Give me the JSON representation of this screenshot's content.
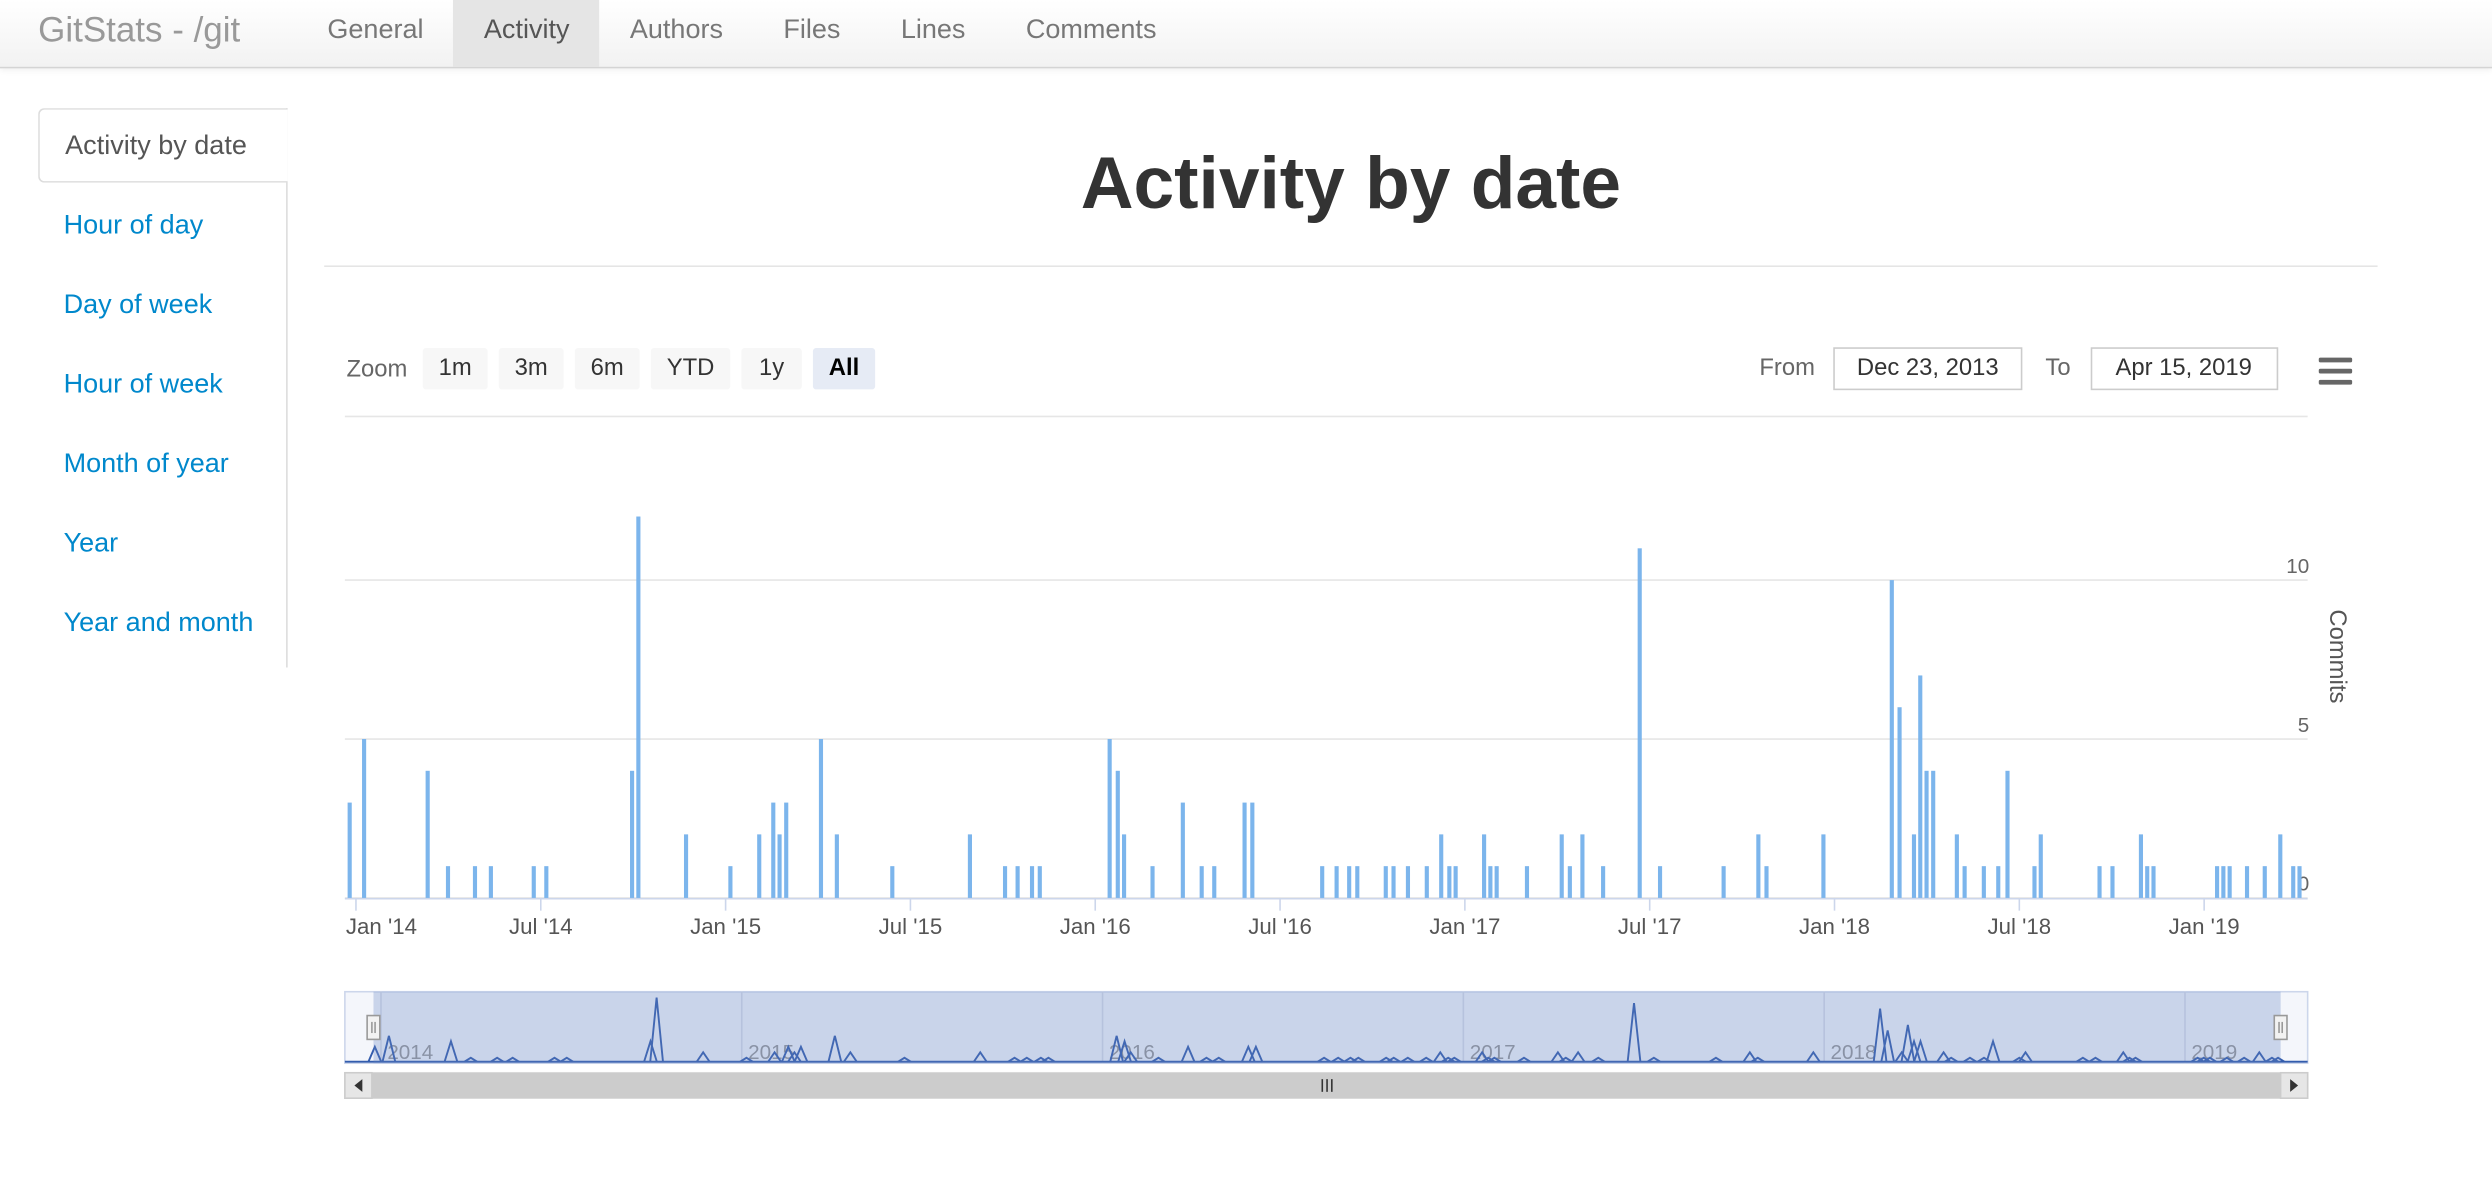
{
  "navbar": {
    "brand": "GitStats - /git",
    "tabs": [
      "General",
      "Activity",
      "Authors",
      "Files",
      "Lines",
      "Comments"
    ],
    "active_tab": 1
  },
  "sidebar": {
    "items": [
      "Activity by date",
      "Hour of day",
      "Day of week",
      "Hour of week",
      "Month of year",
      "Year",
      "Year and month"
    ],
    "active_item": 0
  },
  "heading": "Activity by date",
  "range_selector": {
    "label": "Zoom",
    "buttons": [
      "1m",
      "3m",
      "6m",
      "YTD",
      "1y",
      "All"
    ],
    "selected": 5,
    "from_label": "From",
    "from": "Dec 23, 2013",
    "to_label": "To",
    "to": "Apr 15, 2019"
  },
  "chart_data": {
    "type": "bar",
    "y_label": "Commits",
    "color": "#7cb5ec",
    "x": [
      2013.983,
      2014.022,
      2014.194,
      2014.249,
      2014.322,
      2014.365,
      2014.481,
      2014.515,
      2014.747,
      2014.764,
      2014.893,
      2015.013,
      2015.091,
      2015.129,
      2015.146,
      2015.164,
      2015.258,
      2015.301,
      2015.451,
      2015.661,
      2015.756,
      2015.79,
      2015.829,
      2015.85,
      2016.039,
      2016.061,
      2016.078,
      2016.155,
      2016.237,
      2016.288,
      2016.322,
      2016.404,
      2016.425,
      2016.614,
      2016.653,
      2016.687,
      2016.709,
      2016.786,
      2016.807,
      2016.846,
      2016.897,
      2016.936,
      2016.958,
      2016.975,
      2017.052,
      2017.069,
      2017.086,
      2017.168,
      2017.262,
      2017.284,
      2017.318,
      2017.374,
      2017.473,
      2017.528,
      2017.7,
      2017.794,
      2017.816,
      2017.97,
      2018.155,
      2018.176,
      2018.215,
      2018.232,
      2018.249,
      2018.267,
      2018.331,
      2018.352,
      2018.404,
      2018.443,
      2018.468,
      2018.541,
      2018.558,
      2018.717,
      2018.752,
      2018.829,
      2018.846,
      2018.863,
      2019.035,
      2019.052,
      2019.069,
      2019.116,
      2019.164,
      2019.206,
      2019.241,
      2019.258
    ],
    "values": [
      3,
      5,
      4,
      1,
      1,
      1,
      1,
      1,
      4,
      12,
      2,
      1,
      2,
      3,
      2,
      3,
      5,
      2,
      1,
      2,
      1,
      1,
      1,
      1,
      5,
      4,
      2,
      1,
      3,
      1,
      1,
      3,
      3,
      1,
      1,
      1,
      1,
      1,
      1,
      1,
      1,
      2,
      1,
      1,
      2,
      1,
      1,
      1,
      2,
      1,
      2,
      1,
      11,
      1,
      1,
      2,
      1,
      2,
      10,
      6,
      2,
      7,
      4,
      4,
      2,
      1,
      1,
      1,
      4,
      1,
      2,
      1,
      1,
      2,
      1,
      1,
      1,
      1,
      1,
      1,
      1,
      2,
      1,
      1
    ],
    "xlim": [
      2013.97,
      2019.28
    ],
    "xticks": [
      {
        "value": 2014,
        "label": "Jan '14"
      },
      {
        "value": 2014.5,
        "label": "Jul '14"
      },
      {
        "value": 2015,
        "label": "Jan '15"
      },
      {
        "value": 2015.5,
        "label": "Jul '15"
      },
      {
        "value": 2016,
        "label": "Jan '16"
      },
      {
        "value": 2016.5,
        "label": "Jul '16"
      },
      {
        "value": 2017,
        "label": "Jan '17"
      },
      {
        "value": 2017.5,
        "label": "Jul '17"
      },
      {
        "value": 2018,
        "label": "Jan '18"
      },
      {
        "value": 2018.5,
        "label": "Jul '18"
      },
      {
        "value": 2019,
        "label": "Jan '19"
      }
    ],
    "ylim": [
      0,
      15
    ],
    "yticks": [
      0,
      5,
      10
    ],
    "grid": true,
    "navigator": {
      "color": "#335cad",
      "xlim": [
        2013.9,
        2019.34
      ],
      "xticks": [
        2014,
        2015,
        2016,
        2017,
        2018,
        2019
      ]
    }
  }
}
